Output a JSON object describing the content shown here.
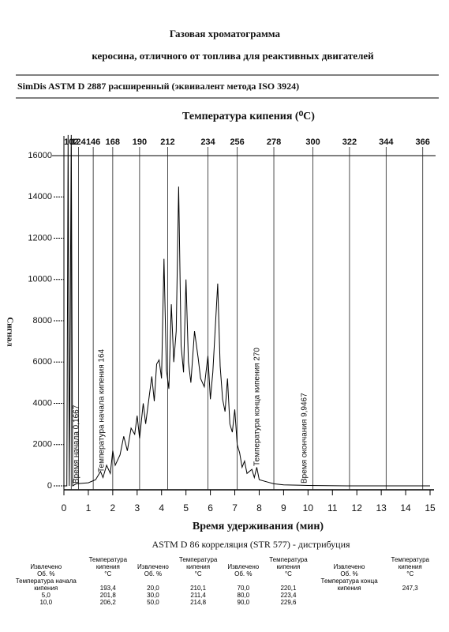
{
  "header": {
    "title": "Газовая хроматограмма",
    "subtitle": "керосина, отличного от топлива для реактивных двигателей",
    "method": "SimDis ASTM D 2887 расширенный (эквивалент метода ISO 3924)"
  },
  "chart_data": {
    "type": "line",
    "color": "#000000",
    "x2label": "Температура кипения (⁰С)",
    "xlabel": "Время удерживания (мин)",
    "ylabel": "Сигнал",
    "annotations": [
      "Время начала 0,1667",
      "Температура начала кипения 164",
      "Температура конца кипения 270",
      "Время окончания 9,9467"
    ],
    "xlim": [
      0,
      15
    ],
    "xticks": [
      0,
      1,
      2,
      3,
      4,
      5,
      6,
      7,
      8,
      9,
      10,
      11,
      12,
      13,
      14,
      15
    ],
    "ylim": [
      0,
      16000
    ],
    "yticks": [
      0,
      2000,
      4000,
      6000,
      8000,
      10000,
      12000,
      14000,
      16000
    ],
    "x2ticks": [
      {
        "value": 0.3,
        "label": "102"
      },
      {
        "value": 0.6,
        "label": "124"
      },
      {
        "value": 1.2,
        "label": "146"
      },
      {
        "value": 2.0,
        "label": "168"
      },
      {
        "value": 3.1,
        "label": "190"
      },
      {
        "value": 4.25,
        "label": "212"
      },
      {
        "value": 5.9,
        "label": "234"
      },
      {
        "value": 7.1,
        "label": "256"
      },
      {
        "value": 8.6,
        "label": "278"
      },
      {
        "value": 10.2,
        "label": "300"
      },
      {
        "value": 11.7,
        "label": "322"
      },
      {
        "value": 13.2,
        "label": "344"
      },
      {
        "value": 14.7,
        "label": "366"
      }
    ],
    "x": [
      0,
      0.12,
      0.17,
      0.22,
      0.3,
      0.36,
      0.5,
      1.0,
      1.3,
      1.5,
      1.6,
      1.75,
      1.9,
      2.0,
      2.1,
      2.3,
      2.45,
      2.6,
      2.75,
      2.9,
      3.0,
      3.1,
      3.25,
      3.35,
      3.5,
      3.6,
      3.7,
      3.8,
      3.9,
      4.0,
      4.1,
      4.2,
      4.3,
      4.4,
      4.5,
      4.6,
      4.7,
      4.8,
      4.9,
      5.0,
      5.1,
      5.2,
      5.35,
      5.5,
      5.6,
      5.75,
      5.9,
      6.0,
      6.1,
      6.3,
      6.4,
      6.5,
      6.6,
      6.7,
      6.8,
      6.9,
      7.0,
      7.1,
      7.2,
      7.3,
      7.4,
      7.5,
      7.7,
      7.8,
      7.9,
      8.0,
      8.3,
      8.6,
      9.0,
      10,
      11.6,
      15
    ],
    "values": [
      0,
      0,
      17000,
      0,
      17000,
      0,
      100,
      150,
      300,
      700,
      400,
      1000,
      600,
      1700,
      1000,
      1500,
      2400,
      1700,
      2800,
      2500,
      3400,
      2300,
      4000,
      3000,
      4400,
      5300,
      4100,
      5900,
      6100,
      5200,
      11000,
      5600,
      4700,
      8800,
      6000,
      7500,
      14500,
      6800,
      5500,
      10000,
      6000,
      5000,
      7500,
      6200,
      5200,
      4800,
      6300,
      4200,
      5500,
      9800,
      5800,
      4200,
      3600,
      5200,
      3000,
      2600,
      3700,
      2000,
      1600,
      900,
      1200,
      600,
      800,
      400,
      900,
      300,
      200,
      100,
      50,
      20,
      0,
      0
    ]
  },
  "table": {
    "title": "ASTM D 86 корреляция (STR 577) - дистрибуция",
    "headers": [
      "Извлечено",
      "Температура кипения",
      "Извлечено",
      "Температура кипения",
      "Извлечено",
      "Температура кипения",
      "Извлечено",
      "Температура кипения"
    ],
    "units": [
      "Об. %",
      "°С",
      "Об. %",
      "°С",
      "Об. %",
      "°С",
      "Об. %",
      "°С"
    ],
    "rows": [
      [
        "Температура начала кипения",
        "193,4",
        "20,0",
        "210,1",
        "70,0",
        "220,1",
        "Температура конца кипения",
        "247,3"
      ],
      [
        "5,0",
        "201,8",
        "30,0",
        "211,4",
        "80,0",
        "223,4"
      ],
      [
        "10,0",
        "206,2",
        "50,0",
        "214,8",
        "90,0",
        "229,6"
      ]
    ]
  }
}
